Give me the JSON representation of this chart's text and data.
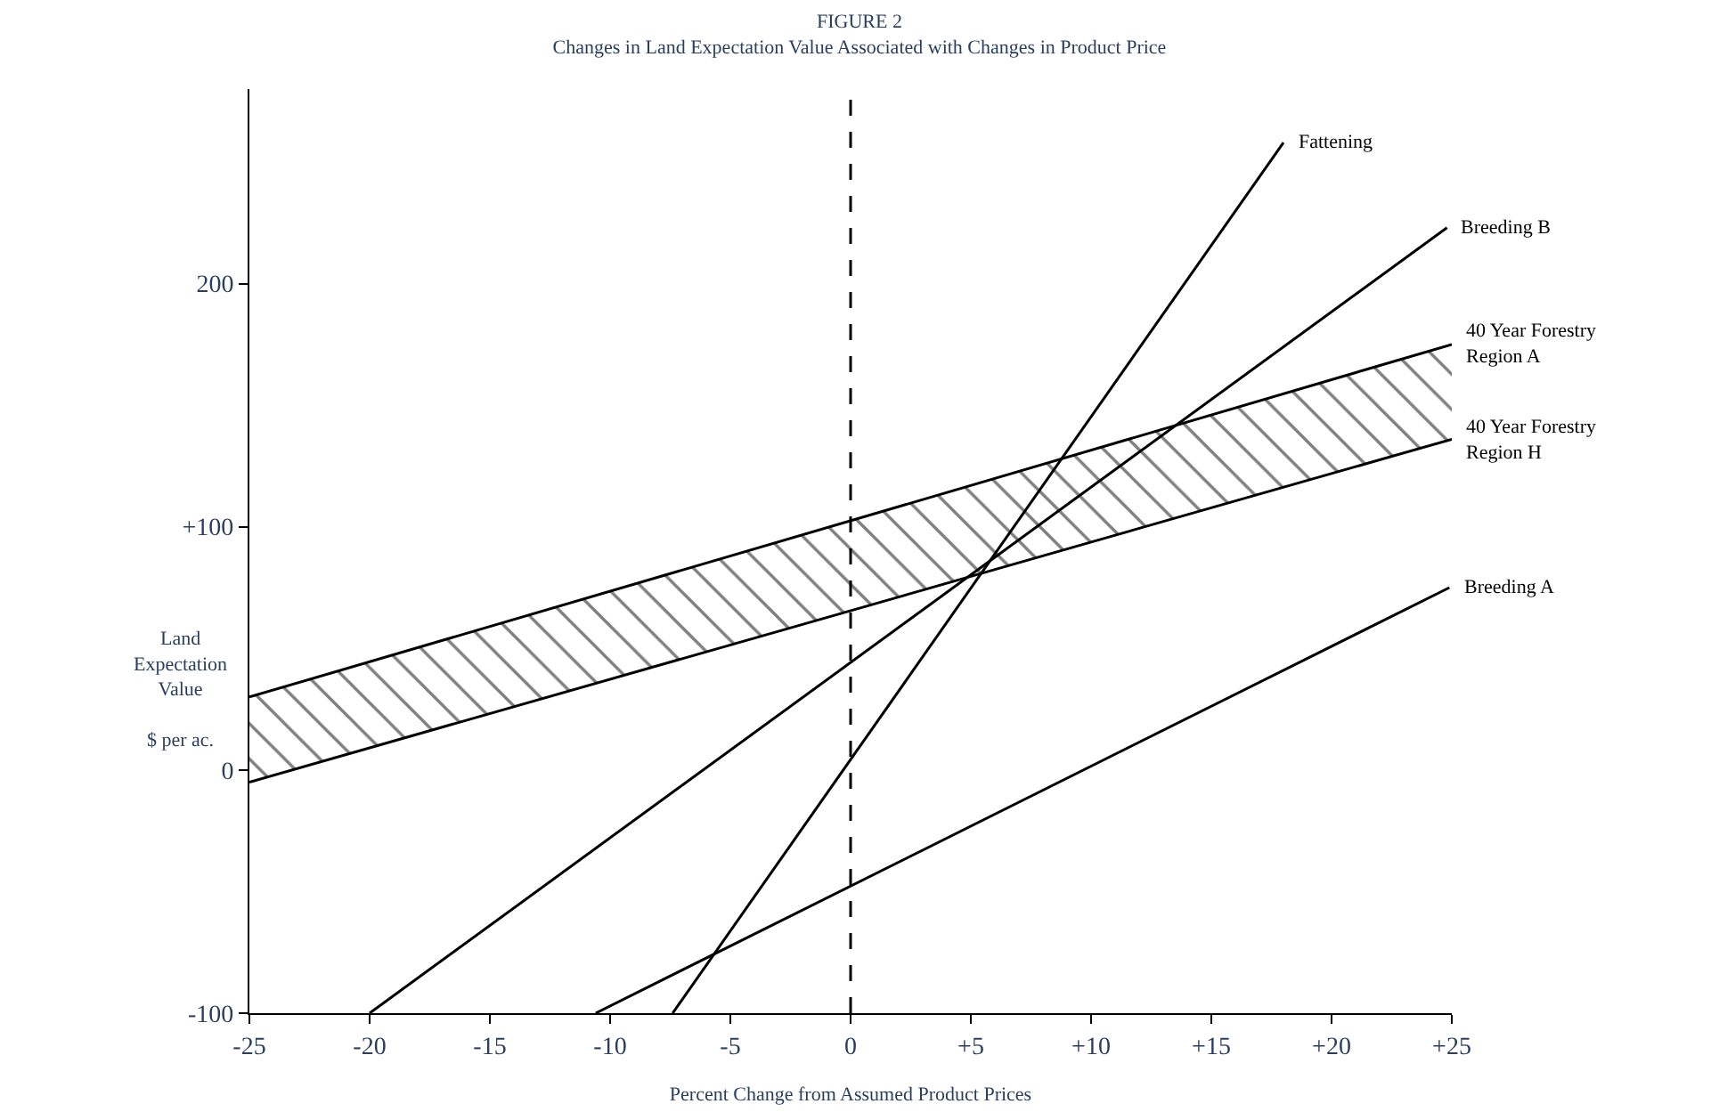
{
  "chart_data": {
    "type": "line",
    "title": "FIGURE 2",
    "subtitle": "Changes in Land Expectation Value Associated with Changes in Product Price",
    "xlabel": "Percent Change from Assumed Product Prices",
    "ylabel": "Land\nExpectation\nValue\n\n$ per ac.",
    "xlim": [
      -25,
      25
    ],
    "xticks": [
      -25,
      -20,
      -15,
      -10,
      -5,
      0,
      {
        "value": 5,
        "label": "+5"
      },
      {
        "value": 10,
        "label": "+10"
      },
      {
        "value": 15,
        "label": "+15"
      },
      {
        "value": 20,
        "label": "+20"
      },
      {
        "value": 25,
        "label": "+25"
      }
    ],
    "ylim": [
      -100,
      280
    ],
    "yticks": [
      -100,
      0,
      {
        "value": 100,
        "label": "+100"
      },
      200
    ],
    "legend": false,
    "marker": "none",
    "line_style": "solid",
    "series": [
      {
        "name": "Fattening",
        "color": "#000000",
        "x": [
          -7.4,
          18
        ],
        "values": [
          -100,
          258
        ]
      },
      {
        "name": "Breeding B",
        "color": "#000000",
        "x": [
          -20,
          24.8
        ],
        "values": [
          -100,
          223
        ]
      },
      {
        "name": "40 Year Forestry Region A",
        "color": "#000000",
        "x": [
          -25,
          25
        ],
        "values": [
          30,
          175
        ],
        "lower": [
          -5,
          136
        ],
        "upper": [
          30,
          175
        ]
      },
      {
        "name": "40 Year Forestry Region H",
        "color": "#000000",
        "x": [
          -25,
          25
        ],
        "values": [
          -5,
          136
        ]
      },
      {
        "name": "Breeding A",
        "color": "#000000",
        "x": [
          -10.6,
          24.9
        ],
        "values": [
          -100,
          75
        ]
      }
    ],
    "ref_lines": [
      {
        "axis": "x",
        "value": 0,
        "line_style": "dashed",
        "color": "#000000"
      }
    ]
  }
}
